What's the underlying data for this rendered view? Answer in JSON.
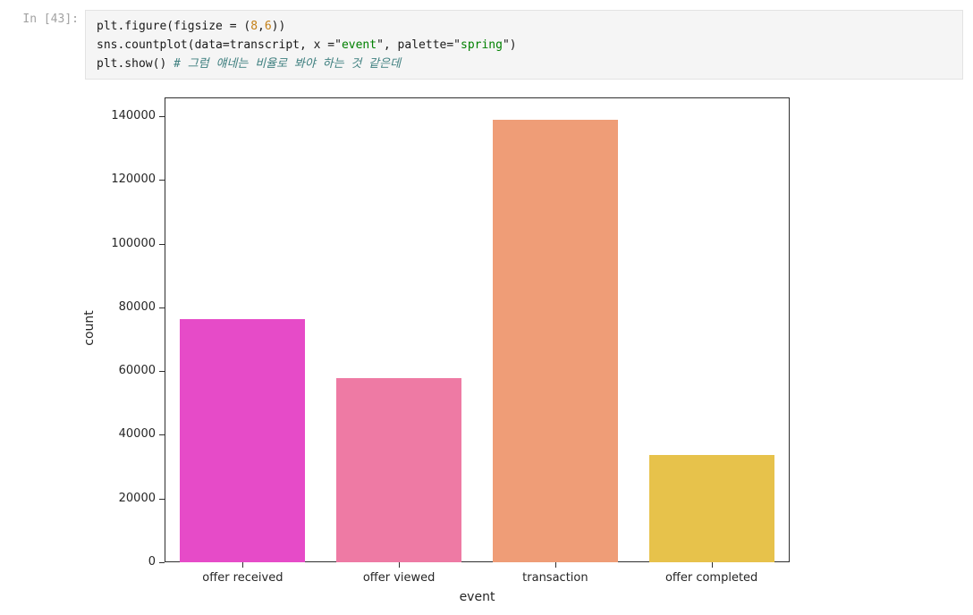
{
  "notebook": {
    "prompt": "In [43]:",
    "code_lines": [
      {
        "segments": [
          {
            "text": "plt.figure(figsize = (",
            "style": "plain"
          },
          {
            "text": "8",
            "style": "number"
          },
          {
            "text": ",",
            "style": "plain"
          },
          {
            "text": "6",
            "style": "number"
          },
          {
            "text": "))",
            "style": "plain"
          }
        ]
      },
      {
        "segments": [
          {
            "text": "sns.countplot(data=transcript, x =\"",
            "style": "plain"
          },
          {
            "text": "event",
            "style": "string"
          },
          {
            "text": "\", palette=\"",
            "style": "plain"
          },
          {
            "text": "spring",
            "style": "string"
          },
          {
            "text": "\")",
            "style": "plain"
          }
        ]
      },
      {
        "segments": [
          {
            "text": "plt.show() ",
            "style": "plain"
          },
          {
            "text": "# 그럼 얘네는 비율로 봐야 하는 것 같은데",
            "style": "comment"
          }
        ]
      }
    ],
    "syntax_colors": {
      "plain": "#1a1a1a",
      "number": "#c47f16",
      "string": "#008000",
      "comment": "#408080"
    }
  },
  "chart_data": {
    "type": "bar",
    "title": "",
    "categories": [
      "offer received",
      "offer viewed",
      "transaction",
      "offer completed"
    ],
    "values": [
      76277,
      57725,
      138953,
      33579
    ],
    "bar_colors": [
      "#e64bc8",
      "#ee7aa4",
      "#ef9d77",
      "#e7c24b"
    ],
    "xlabel": "event",
    "ylabel": "count",
    "ylim": [
      0,
      145900
    ],
    "yticks": [
      0,
      20000,
      40000,
      60000,
      80000,
      100000,
      120000,
      140000
    ],
    "grid": false,
    "legend": "none",
    "bar_width_fraction": 0.8
  }
}
